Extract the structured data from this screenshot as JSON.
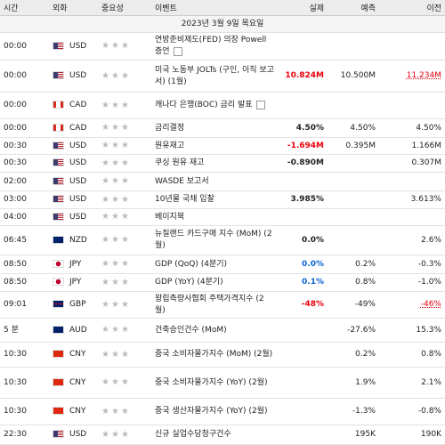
{
  "header": {
    "time": "시간",
    "currency": "외화",
    "importance": "중요성",
    "event": "이벤트",
    "actual": "실제",
    "forecast": "예측",
    "previous": "이전"
  },
  "date": "2023년 3월 9일 목요일",
  "rows": [
    {
      "time": "00:00",
      "currency": "USD",
      "event": "연방준비제도(FED) 의장 Powell 증언"
    },
    {
      "time": "00:00",
      "currency": "USD",
      "event": "미국 노동부 JOLTs (구인, 이직 보고서) (1월)",
      "actual": "10.824M",
      "actual_color": "#e8000b",
      "forecast": "10.500M",
      "previous": "11.234M",
      "previous_color": "#e8000b"
    },
    {
      "time": "00:00",
      "currency": "CAD",
      "event": "캐나다 은행(BOC) 금리 발표"
    },
    {
      "time": "00:00",
      "currency": "CAD",
      "event": "금리결정",
      "actual": "4.50%",
      "forecast": "4.50%",
      "previous": "4.50%"
    },
    {
      "time": "00:30",
      "currency": "USD",
      "event": "원유재고",
      "actual": "-1.694M",
      "actual_color": "#e8000b",
      "forecast": "0.395M",
      "previous": "1.166M"
    },
    {
      "time": "00:30",
      "currency": "USD",
      "event": "쿠싱 원유 재고",
      "actual": "-0.890M",
      "previous": "0.307M"
    },
    {
      "time": "02:00",
      "currency": "USD",
      "event": "WASDE 보고서"
    },
    {
      "time": "03:00",
      "currency": "USD",
      "event": "10년물 국채 입찰",
      "actual": "3.985%",
      "previous": "3.613%"
    },
    {
      "time": "04:00",
      "currency": "USD",
      "event": "베이지북"
    },
    {
      "time": "06:45",
      "currency": "NZD",
      "event": "뉴질랜드 카드구매 지수 (MoM) (2월)",
      "actual": "0.0%",
      "previous": "2.6%"
    },
    {
      "time": "08:50",
      "currency": "JPY",
      "event": "GDP (QoQ) (4분기)",
      "actual": "0.0%",
      "actual_color": "#0a64d2",
      "forecast": "0.2%",
      "previous": "-0.3%"
    },
    {
      "time": "08:50",
      "currency": "JPY",
      "event": "GDP (YoY) (4분기)",
      "actual": "0.1%",
      "actual_color": "#0a64d2",
      "forecast": "0.8%",
      "previous": "-1.0%"
    },
    {
      "time": "09:01",
      "currency": "GBP",
      "event": "왕립측량사협회 주택가격지수 (2월)",
      "actual": "-48%",
      "actual_color": "#e8000b",
      "forecast": "-49%",
      "previous": "-46%",
      "previous_color": "#e8000b"
    },
    {
      "time": "5 분",
      "currency": "AUD",
      "event": "건축승인건수 (MoM)",
      "forecast": "-27.6%",
      "previous": "15.3%"
    },
    {
      "time": "10:30",
      "currency": "CNY",
      "event": "중국 소비자물가지수 (MoM) (2월)",
      "forecast": "0.2%",
      "previous": "0.8%"
    },
    {
      "time": "10:30",
      "currency": "CNY",
      "event": "중국 소비자물가지수 (YoY) (2월)",
      "forecast": "1.9%",
      "previous": "2.1%"
    },
    {
      "time": "10:30",
      "currency": "CNY",
      "event": "중국 생산자물가지수 (YoY) (2월)",
      "forecast": "-1.3%",
      "previous": "-0.8%"
    },
    {
      "time": "22:30",
      "currency": "USD",
      "event": "신규 실업수당청구건수",
      "forecast": "195K",
      "previous": "190K"
    }
  ]
}
